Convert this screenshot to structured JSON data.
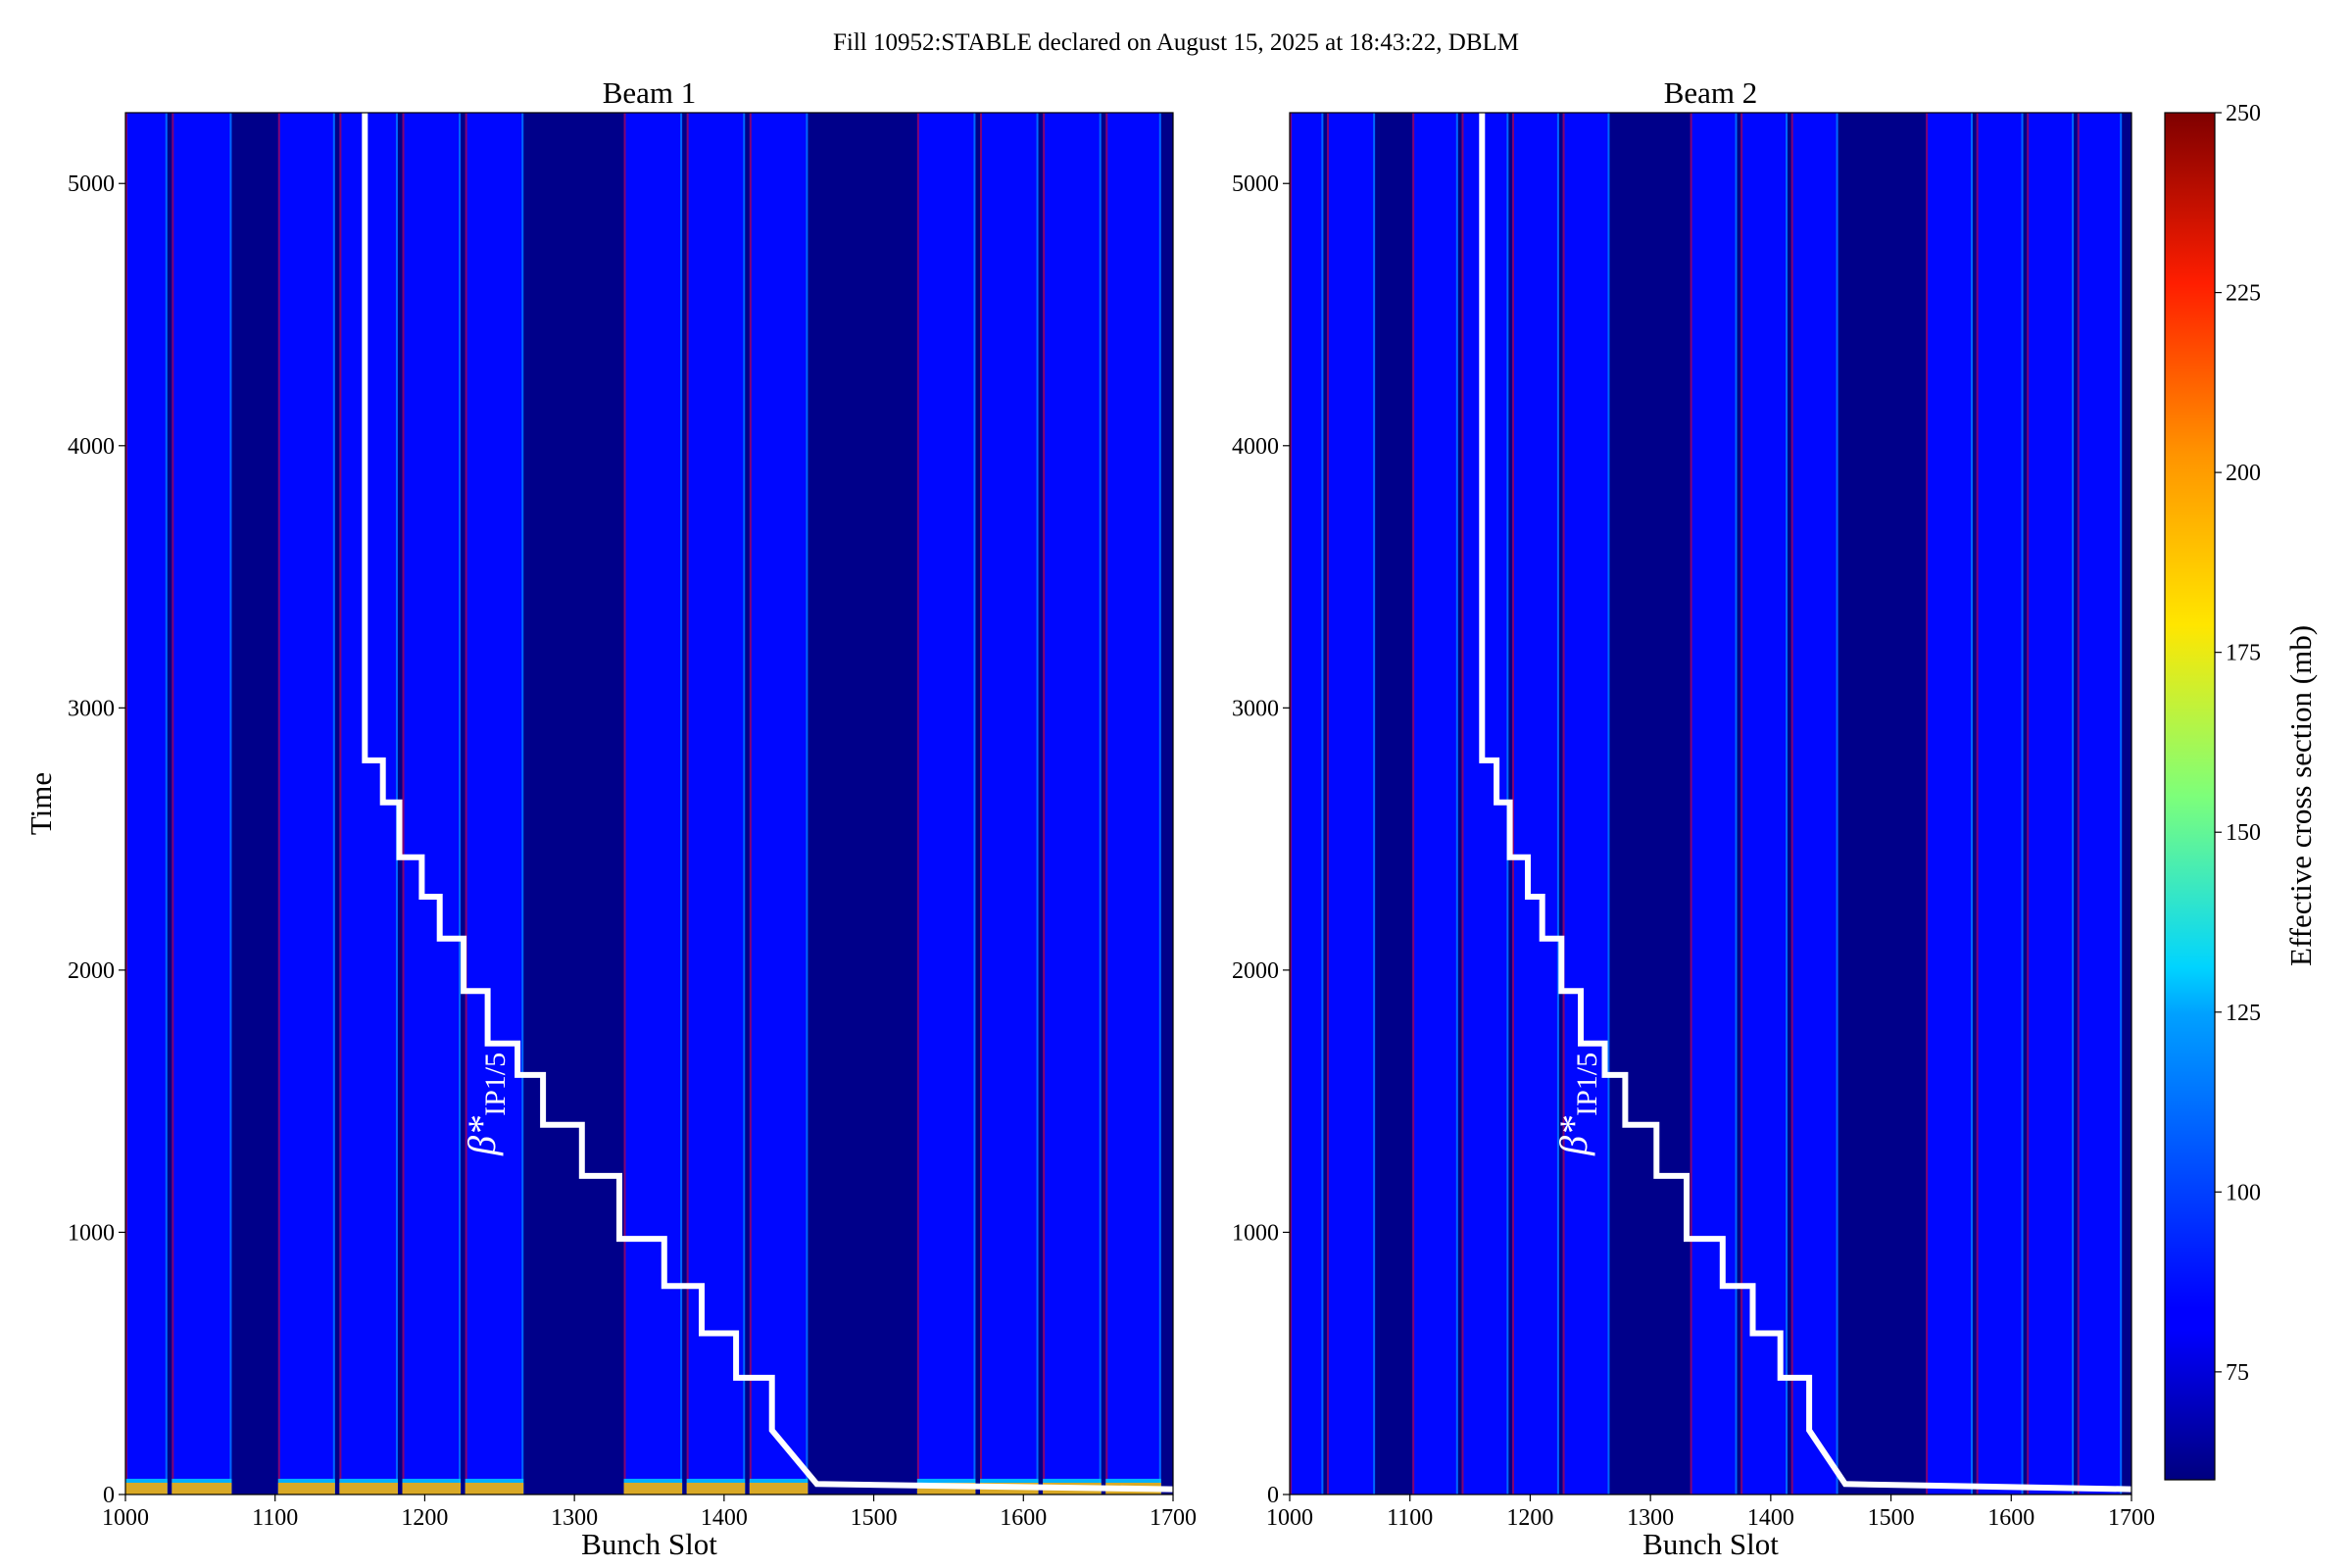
{
  "figure_title": "Fill 10952:STABLE declared on August 15, 2025 at 18:43:22, DBLM",
  "colorbar": {
    "label": "Effective cross section (mb)",
    "range": [
      60,
      250
    ],
    "ticks": [
      75,
      100,
      125,
      150,
      175,
      200,
      225,
      250
    ],
    "colormap": "jet"
  },
  "chart_data": [
    {
      "type": "heatmap",
      "title": "Beam 1",
      "xlabel": "Bunch Slot",
      "ylabel": "Time",
      "xlim": [
        1000,
        1700
      ],
      "ylim": [
        0,
        5270
      ],
      "xticks": [
        1000,
        1100,
        1200,
        1300,
        1400,
        1500,
        1600,
        1700
      ],
      "yticks": [
        0,
        1000,
        2000,
        3000,
        4000,
        5000
      ],
      "base_value": 85,
      "empty_value": 62,
      "filled_trains": [
        [
          1000,
          1028
        ],
        [
          1031,
          1071
        ],
        [
          1102,
          1140
        ],
        [
          1143,
          1182
        ],
        [
          1185,
          1224
        ],
        [
          1227,
          1266
        ],
        [
          1333,
          1372
        ],
        [
          1375,
          1414
        ],
        [
          1417,
          1456
        ],
        [
          1529,
          1568
        ],
        [
          1571,
          1610
        ],
        [
          1613,
          1652
        ],
        [
          1655,
          1692
        ]
      ],
      "edge_value": 230,
      "startup_band": {
        "time_max": 60,
        "value": 120
      },
      "annotation": {
        "text": "β*",
        "subscript": "IP1/5",
        "x": 1247,
        "y": 1490
      },
      "beta_star_line": {
        "x": [
          1160,
          1160,
          1172,
          1172,
          1183,
          1183,
          1198,
          1198,
          1210,
          1210,
          1226,
          1226,
          1242,
          1242,
          1262,
          1262,
          1279,
          1279,
          1305,
          1305,
          1330,
          1330,
          1360,
          1360,
          1385,
          1385,
          1408,
          1408,
          1432,
          1432,
          1462,
          1700
        ],
        "y": [
          5270,
          2800,
          2800,
          2640,
          2640,
          2430,
          2430,
          2280,
          2280,
          2120,
          2120,
          1920,
          1920,
          1720,
          1720,
          1600,
          1600,
          1410,
          1410,
          1215,
          1215,
          975,
          975,
          795,
          795,
          615,
          615,
          445,
          445,
          245,
          40,
          20
        ]
      }
    },
    {
      "type": "heatmap",
      "title": "Beam 2",
      "xlabel": "Bunch Slot",
      "ylabel": "",
      "xlim": [
        1000,
        1700
      ],
      "ylim": [
        0,
        5270
      ],
      "xticks": [
        1000,
        1100,
        1200,
        1300,
        1400,
        1500,
        1600,
        1700
      ],
      "yticks": [
        0,
        1000,
        2000,
        3000,
        4000,
        5000
      ],
      "base_value": 85,
      "empty_value": 62,
      "filled_trains": [
        [
          1000,
          1028
        ],
        [
          1031,
          1071
        ],
        [
          1102,
          1140
        ],
        [
          1143,
          1182
        ],
        [
          1185,
          1224
        ],
        [
          1227,
          1266
        ],
        [
          1333,
          1372
        ],
        [
          1375,
          1414
        ],
        [
          1417,
          1456
        ],
        [
          1529,
          1568
        ],
        [
          1571,
          1610
        ],
        [
          1613,
          1652
        ],
        [
          1655,
          1692
        ]
      ],
      "edge_value": 230,
      "startup_band": {
        "time_max": 0,
        "value": 85
      },
      "annotation": {
        "text": "β*",
        "subscript": "IP1/5",
        "x": 1247,
        "y": 1490
      },
      "beta_star_line": {
        "x": [
          1160,
          1160,
          1172,
          1172,
          1183,
          1183,
          1198,
          1198,
          1210,
          1210,
          1226,
          1226,
          1242,
          1242,
          1262,
          1262,
          1279,
          1279,
          1305,
          1305,
          1330,
          1330,
          1360,
          1360,
          1385,
          1385,
          1408,
          1408,
          1432,
          1432,
          1462,
          1700
        ],
        "y": [
          5270,
          2800,
          2800,
          2640,
          2640,
          2430,
          2430,
          2280,
          2280,
          2120,
          2120,
          1920,
          1920,
          1720,
          1720,
          1600,
          1600,
          1410,
          1410,
          1215,
          1215,
          975,
          975,
          795,
          795,
          615,
          615,
          445,
          445,
          245,
          40,
          20
        ]
      }
    }
  ]
}
